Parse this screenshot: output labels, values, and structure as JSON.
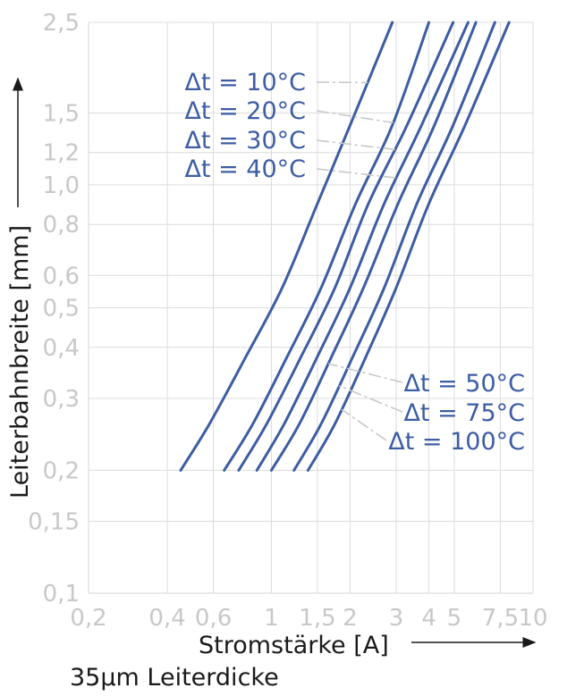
{
  "chart_data": {
    "type": "line",
    "xlabel": "Stromstärke [A]",
    "ylabel": "Leiterbahnbreite [mm]",
    "caption": "35µm Leiterdicke",
    "x_scale": "log",
    "y_scale": "log",
    "xlim": [
      0.2,
      10
    ],
    "ylim": [
      0.1,
      2.5
    ],
    "x_ticks": [
      {
        "value": 0.2,
        "label": "0,2"
      },
      {
        "value": 0.4,
        "label": "0,4"
      },
      {
        "value": 0.6,
        "label": "0,6"
      },
      {
        "value": 1,
        "label": "1"
      },
      {
        "value": 1.5,
        "label": "1,5"
      },
      {
        "value": 2,
        "label": "2"
      },
      {
        "value": 3,
        "label": "3"
      },
      {
        "value": 4,
        "label": "4"
      },
      {
        "value": 5,
        "label": "5"
      },
      {
        "value": 7.5,
        "label": "7,5"
      },
      {
        "value": 10,
        "label": "10"
      }
    ],
    "y_ticks": [
      {
        "value": 0.1,
        "label": "0,1"
      },
      {
        "value": 0.15,
        "label": "0,15"
      },
      {
        "value": 0.2,
        "label": "0,2"
      },
      {
        "value": 0.3,
        "label": "0,3"
      },
      {
        "value": 0.4,
        "label": "0,4"
      },
      {
        "value": 0.5,
        "label": "0,5"
      },
      {
        "value": 0.6,
        "label": "0,6"
      },
      {
        "value": 0.8,
        "label": "0,8"
      },
      {
        "value": 1.0,
        "label": "1,0"
      },
      {
        "value": 1.2,
        "label": "1,2"
      },
      {
        "value": 1.5,
        "label": "1,5"
      },
      {
        "value": 2.5,
        "label": "2,5"
      }
    ],
    "grid": true,
    "series": [
      {
        "name": "Δt = 10°C",
        "x": [
          0.45,
          0.58,
          0.8,
          1.1,
          1.5,
          2.0,
          2.9
        ],
        "y": [
          0.2,
          0.26,
          0.38,
          0.56,
          0.9,
          1.4,
          2.5
        ]
      },
      {
        "name": "Δt = 20°C",
        "x": [
          0.66,
          0.85,
          1.15,
          1.55,
          2.1,
          2.9,
          4.0
        ],
        "y": [
          0.2,
          0.26,
          0.38,
          0.56,
          0.9,
          1.4,
          2.5
        ]
      },
      {
        "name": "Δt = 30°C",
        "x": [
          0.75,
          0.96,
          1.3,
          1.75,
          2.35,
          3.3,
          4.95
        ],
        "y": [
          0.2,
          0.26,
          0.38,
          0.56,
          0.9,
          1.4,
          2.5
        ]
      },
      {
        "name": "Δt = 40°C",
        "x": [
          0.88,
          1.12,
          1.5,
          2.0,
          2.7,
          3.75,
          5.65
        ],
        "y": [
          0.2,
          0.26,
          0.38,
          0.56,
          0.9,
          1.4,
          2.5
        ]
      },
      {
        "name": "Δt = 50°C",
        "x": [
          1.0,
          1.28,
          1.7,
          2.25,
          3.05,
          4.2,
          6.05
        ],
        "y": [
          0.2,
          0.26,
          0.38,
          0.56,
          0.9,
          1.4,
          2.5
        ]
      },
      {
        "name": "Δt = 75°C",
        "x": [
          1.22,
          1.55,
          2.05,
          2.7,
          3.6,
          4.95,
          7.15
        ],
        "y": [
          0.2,
          0.26,
          0.38,
          0.56,
          0.9,
          1.4,
          2.5
        ]
      },
      {
        "name": "Δt = 100°C",
        "x": [
          1.38,
          1.75,
          2.3,
          3.0,
          4.0,
          5.5,
          8.1
        ],
        "y": [
          0.2,
          0.26,
          0.38,
          0.56,
          0.9,
          1.4,
          2.5
        ]
      }
    ],
    "colors": {
      "curve": "#3c5da3",
      "grid": "#dcdcdc",
      "tick": "#c8c8c8",
      "leader": "#c8c8c8",
      "axis_title": "#1a1a1a"
    }
  }
}
